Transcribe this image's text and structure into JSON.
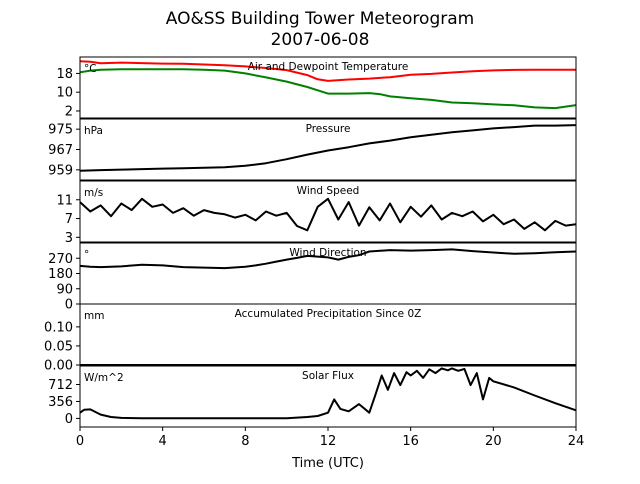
{
  "title_line1": "AO&SS Building Tower Meteorogram",
  "title_line2": "2007-06-08",
  "colors": {
    "temperature": "#ff0000",
    "dewpoint": "#008000",
    "line": "#000000"
  },
  "chart_data": {
    "type": "line",
    "xlabel": "Time (UTC)",
    "xlim": [
      0,
      24
    ],
    "xticks": [
      0,
      4,
      8,
      12,
      16,
      20,
      24
    ],
    "panels": [
      {
        "id": "temp",
        "title": "Air and Dewpoint Temperature",
        "unit": "°C",
        "ylim": [
          -1,
          25
        ],
        "yticks": [
          2,
          10,
          18
        ],
        "series": [
          {
            "key": "temperature",
            "color": "#ff0000",
            "x": [
              0,
              0.5,
              1,
              2,
              3,
              4,
              5,
              6,
              7,
              8,
              9,
              10,
              11,
              11.5,
              12,
              13,
              14,
              15,
              16,
              17,
              18,
              19,
              20,
              21,
              22,
              23,
              24
            ],
            "y": [
              23.2,
              23,
              22.3,
              22.6,
              22.4,
              22.2,
              22.1,
              21.8,
              21.5,
              21,
              20.3,
              19.4,
              17.3,
              15.5,
              14.8,
              15.4,
              15.8,
              16.4,
              17.4,
              17.8,
              18.4,
              18.9,
              19.3,
              19.5,
              19.6,
              19.6,
              19.6
            ]
          },
          {
            "key": "dewpoint",
            "color": "#008000",
            "x": [
              0,
              0.5,
              1,
              2,
              3,
              4,
              5,
              6,
              7,
              8,
              9,
              10,
              11,
              11.5,
              12,
              13,
              14,
              14.5,
              15,
              16,
              17,
              18,
              19,
              20,
              21,
              22,
              23,
              24
            ],
            "y": [
              18.5,
              19.2,
              19.6,
              19.8,
              19.8,
              19.8,
              19.8,
              19.6,
              19.2,
              18,
              16.3,
              14.5,
              12.2,
              10.8,
              9.4,
              9.4,
              9.6,
              9.2,
              8.2,
              7.4,
              6.7,
              5.6,
              5.3,
              4.8,
              4.4,
              3.5,
              3.2,
              4.5
            ]
          }
        ]
      },
      {
        "id": "pres",
        "title": "Pressure",
        "unit": "hPa",
        "ylim": [
          955,
          979
        ],
        "yticks": [
          959,
          967,
          975
        ],
        "series": [
          {
            "key": "pressure",
            "color": "#000000",
            "x": [
              0,
              1,
              2,
              3,
              4,
              5,
              6,
              7,
              8,
              9,
              10,
              11,
              12,
              13,
              14,
              15,
              16,
              17,
              18,
              19,
              20,
              21,
              22,
              23,
              24
            ],
            "y": [
              958.6,
              958.9,
              959.1,
              959.3,
              959.5,
              959.6,
              959.8,
              960,
              960.6,
              961.6,
              963.2,
              965,
              966.6,
              967.9,
              969.4,
              970.5,
              971.8,
              972.8,
              973.8,
              974.5,
              975.3,
              975.8,
              976.4,
              976.4,
              976.6
            ]
          }
        ]
      },
      {
        "id": "wspd",
        "title": "Wind Speed",
        "unit": "m/s",
        "ylim": [
          2,
          15
        ],
        "yticks": [
          3,
          7,
          11
        ],
        "series": [
          {
            "key": "wind_speed",
            "color": "#000000",
            "x": [
              0,
              0.5,
              1,
              1.5,
              2,
              2.5,
              3,
              3.5,
              4,
              4.5,
              5,
              5.5,
              6,
              6.5,
              7,
              7.5,
              8,
              8.5,
              9,
              9.5,
              10,
              10.5,
              11,
              11.5,
              12,
              12.5,
              13,
              13.5,
              14,
              14.5,
              15,
              15.5,
              16,
              16.5,
              17,
              17.5,
              18,
              18.5,
              19,
              19.5,
              20,
              20.5,
              21,
              21.5,
              22,
              22.5,
              23,
              23.5,
              24
            ],
            "y": [
              10.5,
              8.5,
              9.8,
              7.5,
              10.2,
              8.8,
              11.2,
              9.5,
              10,
              8.2,
              9.2,
              7.6,
              8.8,
              8.2,
              7.9,
              7.2,
              7.8,
              6.6,
              8.5,
              7.6,
              8.2,
              5.4,
              4.5,
              9.5,
              11.2,
              6.8,
              10.5,
              5.5,
              9.4,
              6.6,
              10.2,
              6.2,
              9.5,
              7.4,
              9.8,
              6.8,
              8.2,
              7.5,
              8.5,
              6.4,
              7.8,
              5.8,
              6.8,
              4.8,
              6.2,
              4.5,
              6.5,
              5.5,
              5.8
            ]
          }
        ]
      },
      {
        "id": "wdir",
        "title": "Wind Direction",
        "unit": "°",
        "ylim": [
          0,
          360
        ],
        "yticks": [
          0,
          90,
          180,
          270
        ],
        "series": [
          {
            "key": "wind_direction",
            "color": "#000000",
            "x": [
              0,
              0.5,
              1,
              2,
              3,
              4,
              5,
              6,
              7,
              8,
              8.5,
              9,
              9.5,
              10,
              10.5,
              11,
              11.5,
              12,
              12.5,
              13,
              13.5,
              14,
              15,
              16,
              17,
              18,
              19,
              20,
              21,
              22,
              23,
              24
            ],
            "y": [
              225,
              220,
              218,
              222,
              232,
              228,
              218,
              215,
              212,
              220,
              228,
              238,
              250,
              262,
              272,
              284,
              280,
              275,
              262,
              278,
              288,
              310,
              318,
              315,
              318,
              322,
              312,
              304,
              296,
              300,
              305,
              310
            ]
          }
        ]
      },
      {
        "id": "precip",
        "title": "Accumulated Precipitation Since 0Z",
        "unit": "mm",
        "ylim": [
          0,
          0.16
        ],
        "yticks": [
          "0.00",
          "0.05",
          "0.10"
        ],
        "series": [
          {
            "key": "precipitation",
            "color": "#000000",
            "x": [
              0,
              24
            ],
            "y": [
              0,
              0
            ]
          }
        ]
      },
      {
        "id": "solar",
        "title": "Solar Flux",
        "unit": "W/m^2",
        "ylim": [
          -180,
          1100
        ],
        "yticks": [
          0,
          356,
          712
        ],
        "series": [
          {
            "key": "solar_flux",
            "color": "#000000",
            "x": [
              0,
              0.2,
              0.5,
              1,
              1.5,
              2,
              3,
              4,
              6,
              8,
              10,
              11,
              11.5,
              12,
              12.3,
              12.6,
              13,
              13.5,
              14,
              14.3,
              14.6,
              14.9,
              15.2,
              15.5,
              15.8,
              16,
              16.3,
              16.6,
              16.9,
              17.2,
              17.5,
              17.8,
              18,
              18.3,
              18.6,
              18.9,
              19.2,
              19.5,
              19.8,
              20,
              21,
              22,
              23,
              24
            ],
            "y": [
              120,
              180,
              190,
              80,
              30,
              10,
              5,
              5,
              5,
              5,
              5,
              30,
              50,
              120,
              400,
              200,
              150,
              300,
              120,
              500,
              900,
              600,
              950,
              700,
              970,
              900,
              1000,
              850,
              1030,
              950,
              1050,
              1010,
              1050,
              1000,
              1040,
              700,
              950,
              400,
              850,
              780,
              650,
              480,
              320,
              170
            ]
          }
        ]
      }
    ]
  }
}
